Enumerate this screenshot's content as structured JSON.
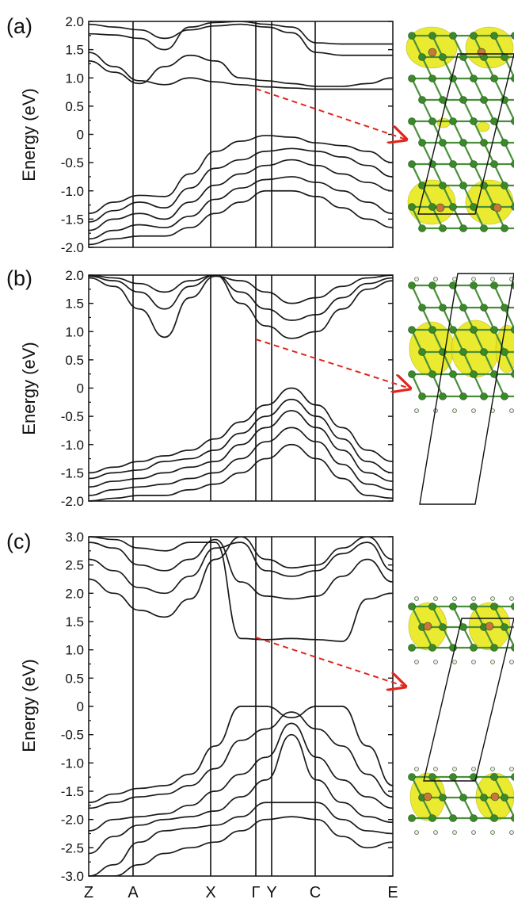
{
  "chart_data": [
    {
      "type": "line",
      "panel_label": "(a)",
      "ylabel": "Energy (eV)",
      "ylim": [
        -2.0,
        2.0
      ],
      "y_ticks": [
        "2.0",
        "1.5",
        "1.0",
        "0.5",
        "0",
        "-0.5",
        "-1.0",
        "-1.5",
        "-2.0"
      ],
      "kpoints": [
        "Z",
        "A",
        "X",
        "Γ",
        "Y",
        "C",
        "E"
      ],
      "series": [
        {
          "y": [
            1.78,
            1.76,
            1.7,
            1.5,
            1.9,
            1.98,
            2.0,
            1.95,
            1.9,
            1.62,
            1.6,
            1.6,
            1.6
          ]
        },
        {
          "y": [
            1.95,
            1.9,
            1.85,
            1.7,
            1.85,
            1.92,
            1.95,
            1.9,
            1.8,
            1.45,
            1.4,
            1.4,
            1.4
          ]
        },
        {
          "y": [
            1.45,
            1.2,
            0.95,
            0.88,
            1.0,
            0.93,
            0.88,
            0.84,
            0.82,
            0.8,
            0.8,
            0.8,
            0.8
          ]
        },
        {
          "y": [
            1.3,
            1.1,
            0.9,
            1.2,
            1.4,
            1.3,
            1.0,
            0.95,
            0.9,
            0.85,
            0.85,
            0.9,
            1.0
          ]
        },
        {
          "y": [
            -1.4,
            -1.2,
            -1.08,
            -1.1,
            -0.7,
            -0.3,
            -0.12,
            -0.02,
            -0.05,
            -0.15,
            -0.2,
            -0.3,
            -0.5
          ]
        },
        {
          "y": [
            -1.55,
            -1.35,
            -1.2,
            -1.3,
            -0.95,
            -0.6,
            -0.45,
            -0.3,
            -0.25,
            -0.3,
            -0.4,
            -0.55,
            -0.75
          ]
        },
        {
          "y": [
            -1.7,
            -1.5,
            -1.4,
            -1.5,
            -1.2,
            -0.9,
            -0.7,
            -0.55,
            -0.45,
            -0.55,
            -0.7,
            -0.85,
            -1.0
          ]
        },
        {
          "y": [
            -1.85,
            -1.7,
            -1.6,
            -1.65,
            -1.45,
            -1.15,
            -0.95,
            -0.8,
            -0.75,
            -0.85,
            -1.0,
            -1.2,
            -1.4
          ]
        },
        {
          "y": [
            -1.95,
            -1.85,
            -1.8,
            -1.8,
            -1.65,
            -1.4,
            -1.2,
            -1.0,
            -1.0,
            -1.1,
            -1.3,
            -1.5,
            -1.65
          ]
        }
      ],
      "arrow_marker": "Γ"
    },
    {
      "type": "line",
      "panel_label": "(b)",
      "ylabel": "Energy (eV)",
      "ylim": [
        -2.0,
        2.0
      ],
      "y_ticks": [
        "2.0",
        "1.5",
        "1.0",
        "0.5",
        "0",
        "-0.5",
        "-1.0",
        "-1.5",
        "-2.0"
      ],
      "kpoints": [
        "Z",
        "A",
        "X",
        "Γ",
        "Y",
        "C",
        "E"
      ],
      "series": [
        {
          "y": [
            1.95,
            1.8,
            1.4,
            0.9,
            1.6,
            1.98,
            1.9,
            1.7,
            1.5,
            1.6,
            1.8,
            1.95,
            2.0
          ]
        },
        {
          "y": [
            1.98,
            1.9,
            1.7,
            1.4,
            1.8,
            2.0,
            1.7,
            1.4,
            1.2,
            1.3,
            1.6,
            1.85,
            1.95
          ]
        },
        {
          "y": [
            2.0,
            1.95,
            1.85,
            1.7,
            1.9,
            2.0,
            1.5,
            1.1,
            0.88,
            1.0,
            1.4,
            1.75,
            1.9
          ]
        },
        {
          "y": [
            -1.5,
            -1.4,
            -1.3,
            -1.2,
            -1.1,
            -0.9,
            -0.6,
            -0.3,
            0.0,
            -0.3,
            -0.7,
            -1.1,
            -1.3
          ]
        },
        {
          "y": [
            -1.6,
            -1.5,
            -1.45,
            -1.3,
            -1.25,
            -1.1,
            -0.8,
            -0.5,
            -0.2,
            -0.5,
            -0.9,
            -1.3,
            -1.5
          ]
        },
        {
          "y": [
            -1.75,
            -1.65,
            -1.6,
            -1.5,
            -1.4,
            -1.3,
            -1.0,
            -0.7,
            -0.4,
            -0.7,
            -1.1,
            -1.5,
            -1.65
          ]
        },
        {
          "y": [
            -1.9,
            -1.8,
            -1.75,
            -1.7,
            -1.6,
            -1.5,
            -1.25,
            -0.95,
            -0.7,
            -0.95,
            -1.35,
            -1.7,
            -1.8
          ]
        },
        {
          "y": [
            -2.0,
            -1.95,
            -1.9,
            -1.9,
            -1.8,
            -1.7,
            -1.5,
            -1.25,
            -1.0,
            -1.25,
            -1.6,
            -1.9,
            -1.95
          ]
        }
      ],
      "arrow_marker": "Γ"
    },
    {
      "type": "line",
      "panel_label": "(c)",
      "ylabel": "Energy (eV)",
      "ylim": [
        -3.0,
        3.0
      ],
      "y_ticks": [
        "3.0",
        "2.5",
        "2.0",
        "1.5",
        "1.0",
        "0.5",
        "0",
        "-0.5",
        "-1.0",
        "-1.5",
        "-2.0",
        "-2.5",
        "-3.0"
      ],
      "kpoints": [
        "Z",
        "A",
        "X",
        "Γ",
        "Y",
        "C",
        "E"
      ],
      "series": [
        {
          "y": [
            2.25,
            2.0,
            1.7,
            1.58,
            1.9,
            2.6,
            3.0,
            2.6,
            2.45,
            2.5,
            2.8,
            3.0,
            2.6
          ]
        },
        {
          "y": [
            2.6,
            2.4,
            2.1,
            2.0,
            2.3,
            2.8,
            2.9,
            2.4,
            2.3,
            2.4,
            2.7,
            2.9,
            2.4
          ]
        },
        {
          "y": [
            2.9,
            2.8,
            2.5,
            2.4,
            2.6,
            2.95,
            2.2,
            1.95,
            1.9,
            1.95,
            2.3,
            2.6,
            2.2
          ]
        },
        {
          "y": [
            3.0,
            2.95,
            2.8,
            2.75,
            2.9,
            2.9,
            1.2,
            1.18,
            1.2,
            1.18,
            1.15,
            1.9,
            2.0
          ]
        },
        {
          "y": [
            -1.7,
            -1.55,
            -1.45,
            -1.4,
            -1.2,
            -0.7,
            0.0,
            0.0,
            -0.2,
            0.0,
            0.0,
            -0.7,
            -1.4
          ]
        },
        {
          "y": [
            -1.8,
            -1.7,
            -1.6,
            -1.55,
            -1.4,
            -1.1,
            -0.6,
            -0.4,
            -0.1,
            -0.4,
            -0.7,
            -1.2,
            -1.6
          ]
        },
        {
          "y": [
            -2.2,
            -2.0,
            -1.95,
            -1.9,
            -1.75,
            -1.5,
            -1.2,
            -0.9,
            -0.3,
            -0.9,
            -1.3,
            -1.6,
            -1.8
          ]
        },
        {
          "y": [
            -2.6,
            -2.3,
            -2.1,
            -2.0,
            -1.95,
            -1.85,
            -1.6,
            -1.3,
            -0.5,
            -1.3,
            -1.7,
            -1.95,
            -2.05
          ]
        },
        {
          "y": [
            -3.0,
            -2.8,
            -2.4,
            -2.2,
            -2.15,
            -2.1,
            -1.95,
            -1.7,
            -1.7,
            -1.7,
            -2.0,
            -2.2,
            -2.25
          ]
        },
        {
          "y": [
            -3.0,
            -3.0,
            -2.8,
            -2.6,
            -2.5,
            -2.4,
            -2.2,
            -2.0,
            -1.95,
            -2.0,
            -2.3,
            -2.5,
            -2.4
          ]
        }
      ],
      "arrow_marker": "Γ"
    }
  ],
  "colors": {
    "band_line": "#1a1a1a",
    "arrow": "#e0271f",
    "charge_density": "#e8e81a",
    "carbon_atom": "#3a8a2a",
    "boron_atom": "#c8783a",
    "hydrogen_atom": "#f0e6e6"
  },
  "structures": [
    {
      "icon": "crystal-structure-a"
    },
    {
      "icon": "crystal-structure-b"
    },
    {
      "icon": "crystal-structure-c"
    }
  ]
}
